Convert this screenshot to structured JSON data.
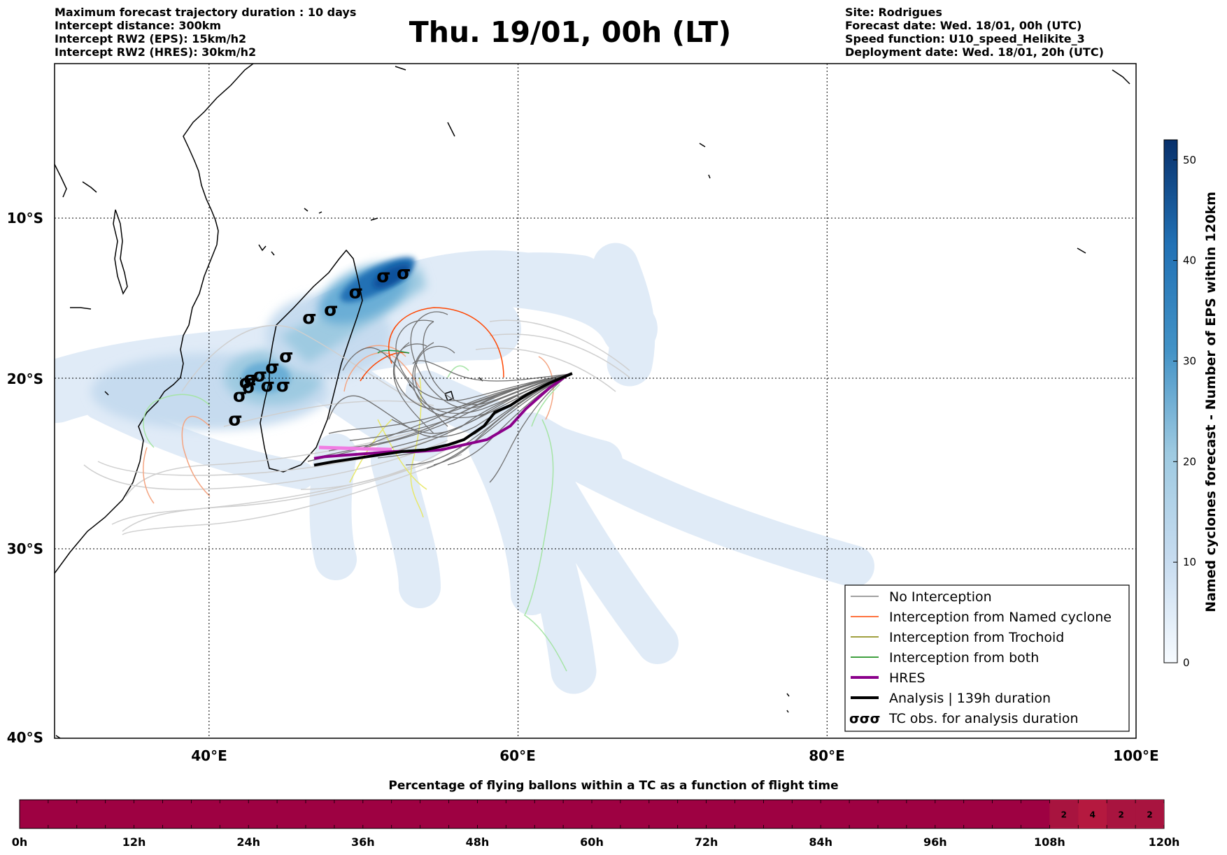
{
  "header": {
    "left_lines": [
      "Maximum forecast trajectory duration : 10 days",
      "Intercept distance: 300km",
      "Intercept RW2 (EPS):  15km/h2",
      "Intercept RW2 (HRES): 30km/h2"
    ],
    "right_lines": [
      "Site: Rodrigues",
      "Forecast date: Wed. 18/01, 00h (UTC)",
      "Speed function: U10_speed_Helikite_3",
      "Deployment date: Wed. 18/01, 20h (UTC)"
    ],
    "title": "Thu. 19/01, 00h (LT)"
  },
  "chart_data": [
    {
      "type": "map-trajectories",
      "x_ticks": [
        "40°E",
        "60°E",
        "80°E",
        "100°E"
      ],
      "x_tick_values": [
        40,
        60,
        80,
        100
      ],
      "y_ticks": [
        "10°S",
        "20°S",
        "30°S",
        "40°S"
      ],
      "y_tick_values": [
        -10,
        -20,
        -30,
        -40
      ],
      "xlim": [
        30,
        100
      ],
      "ylim": [
        -40,
        0
      ],
      "grid": true,
      "legend_position": "lower-right",
      "legend": [
        {
          "label": "No Interception",
          "color": "#808080"
        },
        {
          "label": "Interception from Named cyclone",
          "color": "#ff4500"
        },
        {
          "label": "Interception from Trochoid",
          "color": "#808000"
        },
        {
          "label": "Interception from both",
          "color": "#008000"
        },
        {
          "label": "HRES",
          "color": "#8b008b"
        },
        {
          "label": "Analysis | 139h duration",
          "color": "#000000"
        },
        {
          "label": "TC obs. for analysis duration",
          "icon": "cyclone-symbol-icon",
          "symbol": "σσσ"
        }
      ],
      "analysis_track": [
        [
          63.5,
          -19.7
        ],
        [
          62.0,
          -20.3
        ],
        [
          60.5,
          -21.0
        ],
        [
          59.5,
          -21.6
        ],
        [
          58.5,
          -22.0
        ],
        [
          57.8,
          -22.8
        ],
        [
          56.5,
          -23.6
        ],
        [
          55.5,
          -23.9
        ],
        [
          54.0,
          -24.2
        ],
        [
          52.5,
          -24.3
        ],
        [
          51.0,
          -24.5
        ],
        [
          49.5,
          -24.7
        ],
        [
          48.0,
          -24.9
        ],
        [
          46.8,
          -25.1
        ]
      ],
      "hres_track": [
        [
          63.2,
          -19.8
        ],
        [
          62.0,
          -20.6
        ],
        [
          60.5,
          -21.8
        ],
        [
          59.5,
          -22.8
        ],
        [
          58.0,
          -23.6
        ],
        [
          56.5,
          -23.9
        ],
        [
          55.0,
          -24.2
        ],
        [
          53.5,
          -24.3
        ],
        [
          52.0,
          -24.3
        ],
        [
          50.5,
          -24.4
        ],
        [
          49.0,
          -24.5
        ],
        [
          47.5,
          -24.6
        ],
        [
          46.8,
          -24.7
        ]
      ],
      "tc_observations": [
        [
          52.6,
          -13.4
        ],
        [
          51.3,
          -13.6
        ],
        [
          49.5,
          -14.6
        ],
        [
          47.9,
          -15.7
        ],
        [
          46.5,
          -16.2
        ],
        [
          45.0,
          -18.6
        ],
        [
          44.1,
          -19.3
        ],
        [
          43.3,
          -19.8
        ],
        [
          42.7,
          -20.0
        ],
        [
          42.4,
          -20.2
        ],
        [
          44.8,
          -20.4
        ],
        [
          43.8,
          -20.4
        ],
        [
          42.6,
          -20.5
        ],
        [
          42.0,
          -21.0
        ],
        [
          41.7,
          -22.4
        ]
      ],
      "colorbar": {
        "label": "Named cyclones forecast - Number of EPS within 120km",
        "ticks": [
          0,
          10,
          20,
          30,
          40,
          50
        ],
        "range": [
          0,
          52
        ],
        "colormap": "Blues"
      }
    },
    {
      "type": "heatmap",
      "title": "Percentage of flying ballons within a TC as a function of flight time",
      "x_ticks": [
        "0h",
        "12h",
        "24h",
        "36h",
        "48h",
        "60h",
        "72h",
        "84h",
        "96h",
        "108h",
        "120h"
      ],
      "xlim_hours": [
        0,
        120
      ],
      "bin_hours": 3,
      "labeled_bins": [
        {
          "start_h": 108,
          "end_h": 111,
          "value": "2"
        },
        {
          "start_h": 111,
          "end_h": 114,
          "value": "4"
        },
        {
          "start_h": 114,
          "end_h": 117,
          "value": "2"
        },
        {
          "start_h": 117,
          "end_h": 120,
          "value": "2"
        }
      ],
      "colors": {
        "zero": "#9e0142",
        "low": "#a8143f",
        "mid": "#b5193f"
      }
    }
  ]
}
